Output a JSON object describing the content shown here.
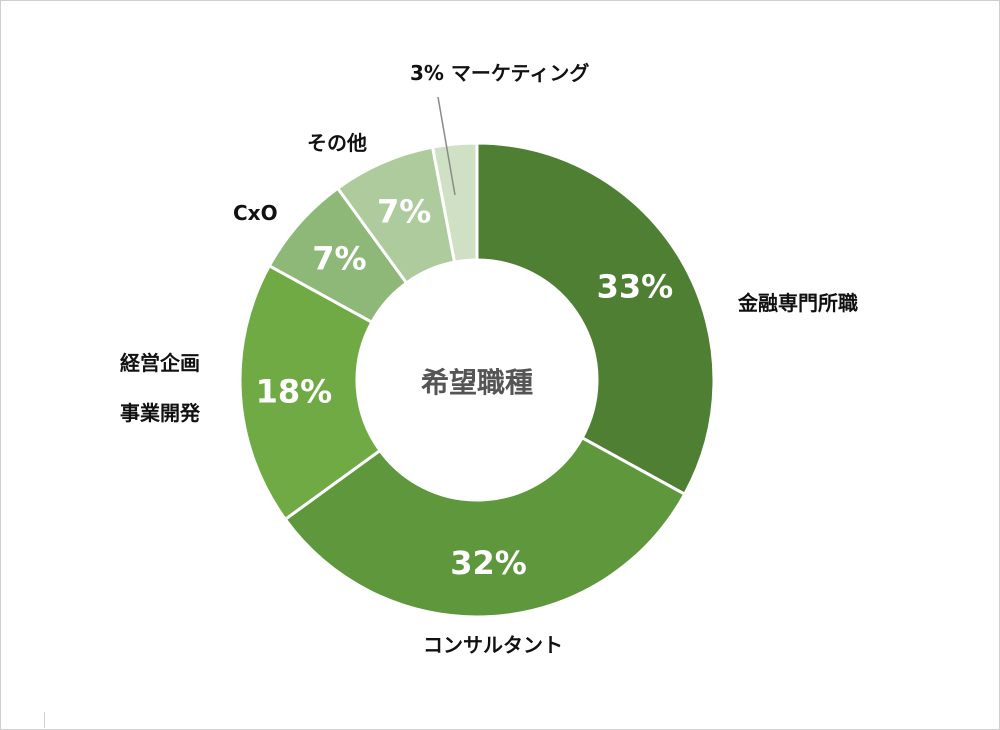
{
  "chart_data": {
    "type": "pie",
    "style": "donut",
    "title": "",
    "center_label": "希望職種",
    "categories": [
      "金融専門所職",
      "コンサルタント",
      "経営企画 事業開発",
      "CxO",
      "その他",
      "マーケティング"
    ],
    "label_lines": [
      [
        "金融専門所職"
      ],
      [
        "コンサルタント"
      ],
      [
        "経営企画",
        "事業開発"
      ],
      [
        "CxO"
      ],
      [
        "その他"
      ],
      [
        "3% マーケティング"
      ]
    ],
    "values": [
      33,
      32,
      18,
      7,
      7,
      3
    ],
    "value_labels": [
      "33%",
      "32%",
      "18%",
      "7%",
      "7%",
      ""
    ],
    "colors": [
      "#4e7f32",
      "#5e973c",
      "#6faa45",
      "#8eb877",
      "#adcb9c",
      "#cfe0c4"
    ]
  }
}
